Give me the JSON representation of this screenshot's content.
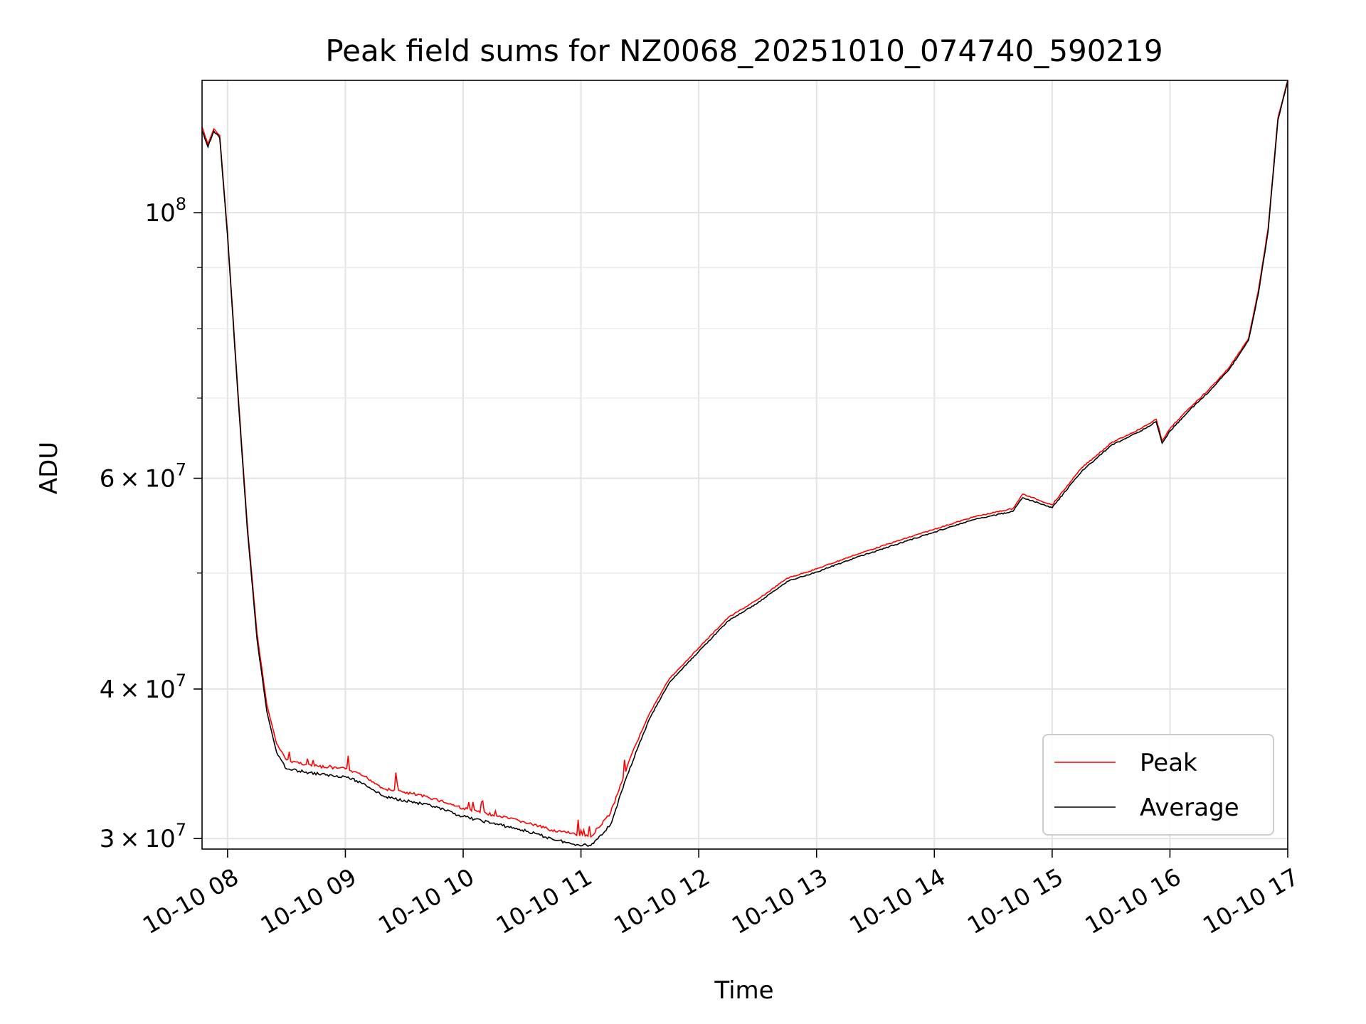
{
  "chart_data": {
    "type": "line",
    "title": "Peak field sums for NZ0068_20251010_074740_590219",
    "xlabel": "Time",
    "ylabel": "ADU",
    "yscale": "log",
    "xlim": [
      "2025-10-10 07:47",
      "2025-10-10 17:00"
    ],
    "ylim": [
      29400000,
      129000000
    ],
    "grid": true,
    "legend_position": "lower-right",
    "x_ticks": [
      {
        "value": "2025-10-10 08:00",
        "label": "10-10 08"
      },
      {
        "value": "2025-10-10 09:00",
        "label": "10-10 09"
      },
      {
        "value": "2025-10-10 10:00",
        "label": "10-10 10"
      },
      {
        "value": "2025-10-10 11:00",
        "label": "10-10 11"
      },
      {
        "value": "2025-10-10 12:00",
        "label": "10-10 12"
      },
      {
        "value": "2025-10-10 13:00",
        "label": "10-10 13"
      },
      {
        "value": "2025-10-10 14:00",
        "label": "10-10 14"
      },
      {
        "value": "2025-10-10 15:00",
        "label": "10-10 15"
      },
      {
        "value": "2025-10-10 16:00",
        "label": "10-10 16"
      },
      {
        "value": "2025-10-10 17:00",
        "label": "10-10 17"
      }
    ],
    "y_ticks_major": [
      {
        "value": 30000000,
        "mantissa": "3",
        "exponent": "7"
      },
      {
        "value": 40000000,
        "mantissa": "4",
        "exponent": "7"
      },
      {
        "value": 60000000,
        "mantissa": "6",
        "exponent": "7"
      },
      {
        "value": 100000000,
        "mantissa": "",
        "exponent": "8"
      }
    ],
    "y_ticks_minor": [
      50000000,
      70000000,
      80000000,
      90000000
    ],
    "series": [
      {
        "name": "Peak",
        "color": "#ff0000",
        "x": [
          "2025-10-10 07:47",
          "2025-10-10 07:50",
          "2025-10-10 07:53",
          "2025-10-10 07:56",
          "2025-10-10 08:00",
          "2025-10-10 08:05",
          "2025-10-10 08:10",
          "2025-10-10 08:15",
          "2025-10-10 08:20",
          "2025-10-10 08:25",
          "2025-10-10 08:30",
          "2025-10-10 08:40",
          "2025-10-10 08:50",
          "2025-10-10 09:00",
          "2025-10-10 09:10",
          "2025-10-10 09:20",
          "2025-10-10 09:30",
          "2025-10-10 09:45",
          "2025-10-10 10:00",
          "2025-10-10 10:15",
          "2025-10-10 10:30",
          "2025-10-10 10:45",
          "2025-10-10 10:55",
          "2025-10-10 11:05",
          "2025-10-10 11:15",
          "2025-10-10 11:25",
          "2025-10-10 11:35",
          "2025-10-10 11:45",
          "2025-10-10 12:00",
          "2025-10-10 12:15",
          "2025-10-10 12:30",
          "2025-10-10 12:45",
          "2025-10-10 13:00",
          "2025-10-10 13:20",
          "2025-10-10 13:40",
          "2025-10-10 14:00",
          "2025-10-10 14:20",
          "2025-10-10 14:40",
          "2025-10-10 14:45",
          "2025-10-10 15:00",
          "2025-10-10 15:15",
          "2025-10-10 15:30",
          "2025-10-10 15:45",
          "2025-10-10 15:53",
          "2025-10-10 15:56",
          "2025-10-10 16:00",
          "2025-10-10 16:10",
          "2025-10-10 16:20",
          "2025-10-10 16:30",
          "2025-10-10 16:40",
          "2025-10-10 16:45",
          "2025-10-10 16:50",
          "2025-10-10 16:55",
          "2025-10-10 17:00"
        ],
        "y": [
          118000000,
          114000000,
          117500000,
          116000000,
          96000000,
          72000000,
          55000000,
          44500000,
          38800000,
          36000000,
          34900000,
          34600000,
          34400000,
          34300000,
          33800000,
          33000000,
          32800000,
          32400000,
          31800000,
          31400000,
          31000000,
          30500000,
          30300000,
          30100000,
          31500000,
          35000000,
          38200000,
          40800000,
          43300000,
          45900000,
          47500000,
          49500000,
          50400000,
          51800000,
          53100000,
          54400000,
          55700000,
          56600000,
          58200000,
          57000000,
          61200000,
          64200000,
          66000000,
          67200000,
          64500000,
          66000000,
          68700000,
          71200000,
          74200000,
          78500000,
          86000000,
          97000000,
          120000000,
          129000000
        ]
      },
      {
        "name": "Average",
        "color": "#000000",
        "x": [
          "2025-10-10 07:47",
          "2025-10-10 07:50",
          "2025-10-10 07:53",
          "2025-10-10 07:56",
          "2025-10-10 08:00",
          "2025-10-10 08:05",
          "2025-10-10 08:10",
          "2025-10-10 08:15",
          "2025-10-10 08:20",
          "2025-10-10 08:25",
          "2025-10-10 08:30",
          "2025-10-10 08:40",
          "2025-10-10 08:50",
          "2025-10-10 09:00",
          "2025-10-10 09:10",
          "2025-10-10 09:20",
          "2025-10-10 09:30",
          "2025-10-10 09:45",
          "2025-10-10 10:00",
          "2025-10-10 10:15",
          "2025-10-10 10:30",
          "2025-10-10 10:45",
          "2025-10-10 10:55",
          "2025-10-10 11:05",
          "2025-10-10 11:15",
          "2025-10-10 11:25",
          "2025-10-10 11:35",
          "2025-10-10 11:45",
          "2025-10-10 12:00",
          "2025-10-10 12:15",
          "2025-10-10 12:30",
          "2025-10-10 12:45",
          "2025-10-10 13:00",
          "2025-10-10 13:20",
          "2025-10-10 13:40",
          "2025-10-10 14:00",
          "2025-10-10 14:20",
          "2025-10-10 14:40",
          "2025-10-10 14:45",
          "2025-10-10 15:00",
          "2025-10-10 15:15",
          "2025-10-10 15:30",
          "2025-10-10 15:45",
          "2025-10-10 15:53",
          "2025-10-10 15:56",
          "2025-10-10 16:00",
          "2025-10-10 16:10",
          "2025-10-10 16:20",
          "2025-10-10 16:30",
          "2025-10-10 16:40",
          "2025-10-10 16:45",
          "2025-10-10 16:50",
          "2025-10-10 16:55",
          "2025-10-10 17:00"
        ],
        "y": [
          117000000,
          113500000,
          117000000,
          115500000,
          95500000,
          71500000,
          54500000,
          44000000,
          38300000,
          35400000,
          34300000,
          34100000,
          33900000,
          33800000,
          33300000,
          32500000,
          32300000,
          31900000,
          31300000,
          30900000,
          30500000,
          30000000,
          29700000,
          29600000,
          30800000,
          34400000,
          37800000,
          40500000,
          43000000,
          45600000,
          47200000,
          49200000,
          50100000,
          51500000,
          52800000,
          54100000,
          55400000,
          56300000,
          57800000,
          56700000,
          60800000,
          63900000,
          65700000,
          66900000,
          64200000,
          65700000,
          68400000,
          70900000,
          73900000,
          78200000,
          85500000,
          96500000,
          119500000,
          128800000
        ]
      }
    ]
  }
}
